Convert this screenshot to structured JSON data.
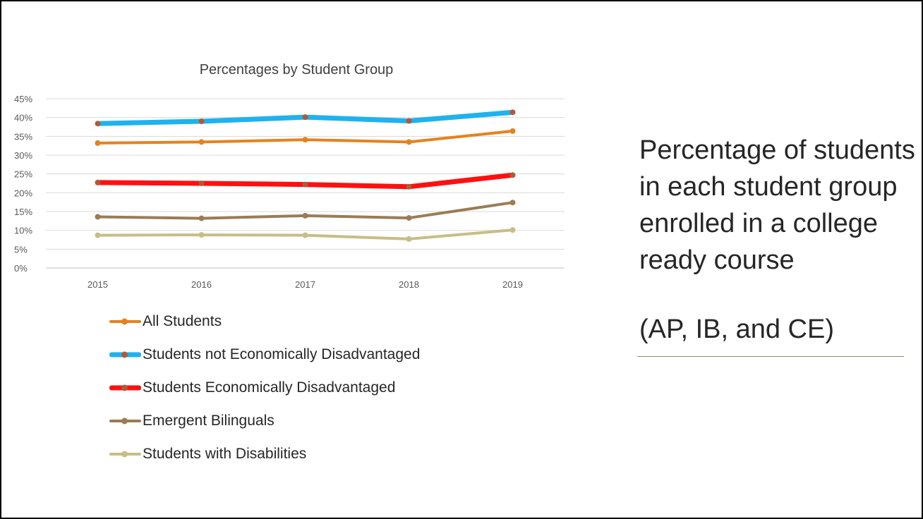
{
  "chart_data": {
    "type": "line",
    "title": "Percentages by Student Group",
    "categories": [
      "2015",
      "2016",
      "2017",
      "2018",
      "2019"
    ],
    "yticks": [
      "0%",
      "5%",
      "10%",
      "15%",
      "20%",
      "25%",
      "30%",
      "35%",
      "40%",
      "45%"
    ],
    "ylim": [
      0,
      45
    ],
    "grid": true,
    "legend_position": "bottom",
    "series": [
      {
        "name": "All Students",
        "values": [
          33.2,
          33.5,
          34.1,
          33.5,
          36.4
        ],
        "color": "#e5821e",
        "width": 4
      },
      {
        "name": "Students not Economically Disadvantaged",
        "values": [
          38.4,
          39.0,
          40.1,
          39.1,
          41.4
        ],
        "color": "#1eb2ee",
        "width": 7
      },
      {
        "name": "Students Economically Disadvantaged",
        "values": [
          22.7,
          22.5,
          22.2,
          21.6,
          24.7
        ],
        "color": "#ff1010",
        "width": 7
      },
      {
        "name": "Emergent Bilinguals",
        "values": [
          13.6,
          13.2,
          13.9,
          13.3,
          17.4
        ],
        "color": "#9a7c55",
        "width": 4
      },
      {
        "name": "Students with Disabilities",
        "values": [
          8.7,
          8.8,
          8.7,
          7.7,
          10.1
        ],
        "color": "#c8bd85",
        "width": 4
      }
    ],
    "marker_color": "#b05a3a"
  },
  "side": {
    "heading": "Percentage of students in each student group enrolled in a college ready course",
    "sub": "(AP, IB, and CE)"
  }
}
